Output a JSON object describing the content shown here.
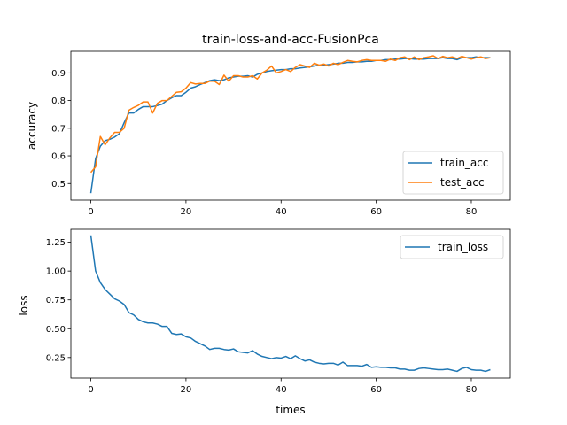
{
  "chart_data": [
    {
      "type": "line",
      "title": "train-loss-and-acc-FusionPca",
      "xlabel": "",
      "ylabel": "accuracy",
      "xlim": [
        -4.2,
        88.2
      ],
      "ylim": [
        0.44,
        0.978
      ],
      "xticks": [
        0,
        20,
        40,
        60,
        80
      ],
      "yticks": [
        0.5,
        0.6,
        0.7,
        0.8,
        0.9
      ],
      "ytick_labels": [
        "0.5",
        "0.6",
        "0.7",
        "0.8",
        "0.9"
      ],
      "legend": "lower-right",
      "grid": false,
      "x": [
        0,
        1,
        2,
        3,
        4,
        5,
        6,
        7,
        8,
        9,
        10,
        11,
        12,
        13,
        14,
        15,
        16,
        17,
        18,
        19,
        20,
        21,
        22,
        23,
        24,
        25,
        26,
        27,
        28,
        29,
        30,
        31,
        32,
        33,
        34,
        35,
        36,
        37,
        38,
        39,
        40,
        41,
        42,
        43,
        44,
        45,
        46,
        47,
        48,
        49,
        50,
        51,
        52,
        53,
        54,
        55,
        56,
        57,
        58,
        59,
        60,
        61,
        62,
        63,
        64,
        65,
        66,
        67,
        68,
        69,
        70,
        71,
        72,
        73,
        74,
        75,
        76,
        77,
        78,
        79,
        80,
        81,
        82,
        83,
        84
      ],
      "series": [
        {
          "name": "train_acc",
          "color": "#1f77b4",
          "values": [
            0.465,
            0.59,
            0.635,
            0.655,
            0.66,
            0.668,
            0.68,
            0.72,
            0.755,
            0.755,
            0.768,
            0.778,
            0.778,
            0.778,
            0.782,
            0.787,
            0.8,
            0.81,
            0.818,
            0.818,
            0.83,
            0.845,
            0.85,
            0.858,
            0.865,
            0.872,
            0.875,
            0.872,
            0.875,
            0.882,
            0.885,
            0.888,
            0.888,
            0.89,
            0.885,
            0.895,
            0.9,
            0.905,
            0.908,
            0.91,
            0.912,
            0.912,
            0.915,
            0.915,
            0.918,
            0.92,
            0.922,
            0.925,
            0.928,
            0.928,
            0.93,
            0.932,
            0.935,
            0.935,
            0.938,
            0.938,
            0.94,
            0.94,
            0.942,
            0.942,
            0.945,
            0.945,
            0.948,
            0.948,
            0.95,
            0.95,
            0.952,
            0.952,
            0.95,
            0.95,
            0.95,
            0.952,
            0.952,
            0.952,
            0.955,
            0.952,
            0.952,
            0.948,
            0.955,
            0.955,
            0.955,
            0.958,
            0.955,
            0.955,
            0.955
          ]
        },
        {
          "name": "test_acc",
          "color": "#ff7f0e",
          "values": [
            0.54,
            0.56,
            0.67,
            0.64,
            0.665,
            0.685,
            0.685,
            0.7,
            0.765,
            0.775,
            0.783,
            0.795,
            0.795,
            0.755,
            0.79,
            0.8,
            0.8,
            0.815,
            0.83,
            0.832,
            0.845,
            0.865,
            0.86,
            0.862,
            0.862,
            0.87,
            0.87,
            0.858,
            0.892,
            0.87,
            0.89,
            0.89,
            0.885,
            0.885,
            0.89,
            0.878,
            0.9,
            0.91,
            0.925,
            0.9,
            0.905,
            0.912,
            0.905,
            0.92,
            0.93,
            0.925,
            0.92,
            0.935,
            0.928,
            0.932,
            0.925,
            0.935,
            0.93,
            0.938,
            0.945,
            0.942,
            0.94,
            0.945,
            0.948,
            0.945,
            0.945,
            0.945,
            0.942,
            0.95,
            0.945,
            0.955,
            0.958,
            0.948,
            0.958,
            0.948,
            0.955,
            0.958,
            0.962,
            0.952,
            0.96,
            0.955,
            0.958,
            0.952,
            0.96,
            0.955,
            0.95,
            0.955,
            0.958,
            0.952,
            0.955
          ]
        }
      ]
    },
    {
      "type": "line",
      "title": "",
      "xlabel": "times",
      "ylabel": "loss",
      "xlim": [
        -4.2,
        88.2
      ],
      "ylim": [
        0.072,
        1.362
      ],
      "xticks": [
        0,
        20,
        40,
        60,
        80
      ],
      "yticks": [
        0.25,
        0.5,
        0.75,
        1.0,
        1.25
      ],
      "ytick_labels": [
        "0.25",
        "0.50",
        "0.75",
        "1.00",
        "1.25"
      ],
      "legend": "upper-right",
      "grid": false,
      "x": [
        0,
        1,
        2,
        3,
        4,
        5,
        6,
        7,
        8,
        9,
        10,
        11,
        12,
        13,
        14,
        15,
        16,
        17,
        18,
        19,
        20,
        21,
        22,
        23,
        24,
        25,
        26,
        27,
        28,
        29,
        30,
        31,
        32,
        33,
        34,
        35,
        36,
        37,
        38,
        39,
        40,
        41,
        42,
        43,
        44,
        45,
        46,
        47,
        48,
        49,
        50,
        51,
        52,
        53,
        54,
        55,
        56,
        57,
        58,
        59,
        60,
        61,
        62,
        63,
        64,
        65,
        66,
        67,
        68,
        69,
        70,
        71,
        72,
        73,
        74,
        75,
        76,
        77,
        78,
        79,
        80,
        81,
        82,
        83,
        84
      ],
      "series": [
        {
          "name": "train_loss",
          "color": "#1f77b4",
          "values": [
            1.31,
            1.0,
            0.9,
            0.84,
            0.8,
            0.76,
            0.74,
            0.71,
            0.64,
            0.62,
            0.58,
            0.56,
            0.55,
            0.55,
            0.54,
            0.52,
            0.52,
            0.46,
            0.45,
            0.455,
            0.43,
            0.42,
            0.39,
            0.37,
            0.35,
            0.32,
            0.33,
            0.33,
            0.32,
            0.315,
            0.325,
            0.3,
            0.295,
            0.29,
            0.31,
            0.28,
            0.26,
            0.25,
            0.24,
            0.25,
            0.245,
            0.26,
            0.24,
            0.265,
            0.24,
            0.22,
            0.23,
            0.21,
            0.2,
            0.195,
            0.2,
            0.2,
            0.185,
            0.21,
            0.18,
            0.18,
            0.18,
            0.175,
            0.19,
            0.165,
            0.17,
            0.165,
            0.165,
            0.16,
            0.16,
            0.15,
            0.15,
            0.14,
            0.14,
            0.155,
            0.16,
            0.155,
            0.15,
            0.145,
            0.145,
            0.15,
            0.14,
            0.13,
            0.155,
            0.165,
            0.145,
            0.14,
            0.14,
            0.13,
            0.145
          ]
        }
      ]
    }
  ]
}
